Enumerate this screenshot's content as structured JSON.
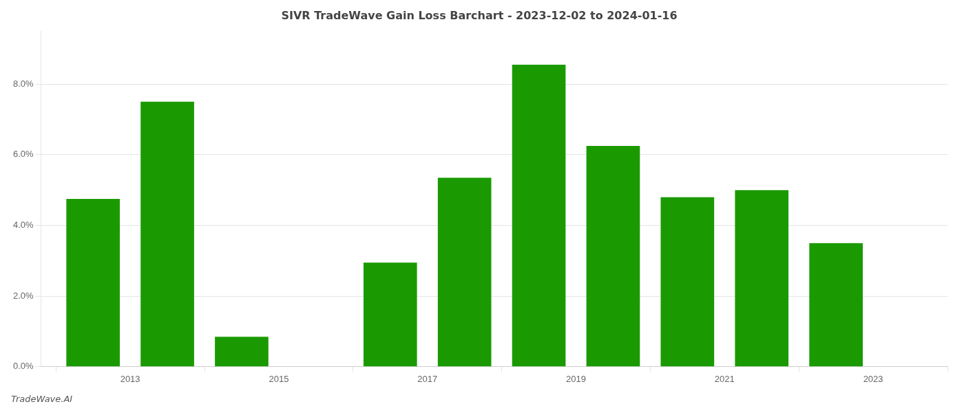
{
  "chart_data": {
    "type": "bar",
    "title": "SIVR TradeWave Gain Loss Barchart - 2023-12-02 to 2024-01-16",
    "annotations": [
      "TradeWave.AI"
    ],
    "x": [
      2012,
      2013,
      2014,
      2016,
      2017,
      2018,
      2019,
      2020,
      2021,
      2022
    ],
    "values": [
      4.75,
      7.5,
      0.85,
      2.95,
      5.35,
      8.55,
      6.25,
      4.8,
      5.0,
      3.5
    ],
    "color": "#1a9a00",
    "xlim": [
      2011.3,
      2023.5
    ],
    "xticks": [
      {
        "value": 2012.5,
        "label": "2013"
      },
      {
        "value": 2014.5,
        "label": "2015"
      },
      {
        "value": 2016.5,
        "label": "2017"
      },
      {
        "value": 2018.5,
        "label": "2019"
      },
      {
        "value": 2020.5,
        "label": "2021"
      },
      {
        "value": 2022.5,
        "label": "2023"
      }
    ],
    "ylim": [
      0,
      9.5
    ],
    "yticks": [
      {
        "value": 0.0,
        "label": "0.0%"
      },
      {
        "value": 2.0,
        "label": "2.0%"
      },
      {
        "value": 4.0,
        "label": "4.0%"
      },
      {
        "value": 6.0,
        "label": "6.0%"
      },
      {
        "value": 8.0,
        "label": "8.0%"
      }
    ],
    "grid": true
  }
}
